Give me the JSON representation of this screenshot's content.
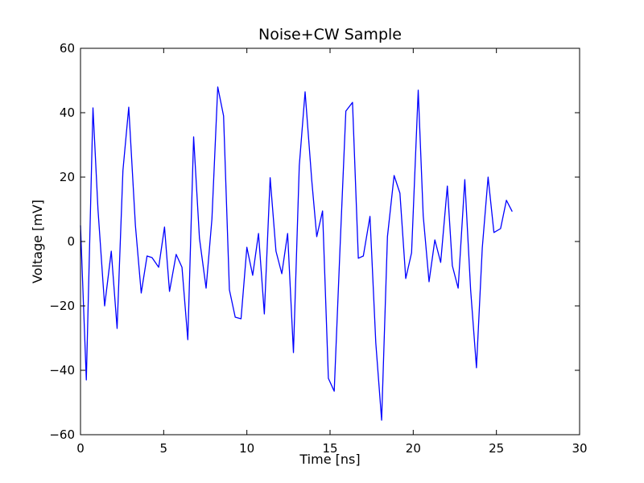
{
  "chart_data": {
    "type": "line",
    "title": "Noise+CW Sample",
    "xlabel": "Time [ns]",
    "ylabel": "Voltage [mV]",
    "xlim": [
      0,
      30
    ],
    "ylim": [
      -60,
      60
    ],
    "xticks": [
      0,
      5,
      10,
      15,
      20,
      25,
      30
    ],
    "yticks": [
      -60,
      -40,
      -20,
      0,
      20,
      40,
      60
    ],
    "xtick_labels": [
      "0",
      "5",
      "10",
      "15",
      "20",
      "25",
      "30"
    ],
    "ytick_labels": [
      "−60",
      "−40",
      "−20",
      "0",
      "20",
      "40",
      "60"
    ],
    "grid": false,
    "legend": "none",
    "colors": {
      "line": "#0000ff",
      "axes": "#000000",
      "background": "#ffffff"
    },
    "series": [
      {
        "x": [
          0,
          0.35,
          0.75,
          1.05,
          1.45,
          1.85,
          2.2,
          2.55,
          2.9,
          3.3,
          3.65,
          4.0,
          4.3,
          4.7,
          5.05,
          5.35,
          5.75,
          6.1,
          6.45,
          6.8,
          7.15,
          7.55,
          7.9,
          8.25,
          8.6,
          8.95,
          9.3,
          9.65,
          10.0,
          10.35,
          10.7,
          11.05,
          11.4,
          11.75,
          12.1,
          12.45,
          12.8,
          13.15,
          13.5,
          13.9,
          14.2,
          14.55,
          14.9,
          15.25,
          15.6,
          15.95,
          16.35,
          16.7,
          17.0,
          17.4,
          17.75,
          18.1,
          18.45,
          18.85,
          19.2,
          19.55,
          19.9,
          20.3,
          20.6,
          20.95,
          21.3,
          21.65,
          22.05,
          22.35,
          22.7,
          23.1,
          23.45,
          23.8,
          24.15,
          24.5,
          24.85,
          25.25,
          25.6,
          25.95
        ],
        "y": [
          5,
          -43,
          41.5,
          10,
          -20,
          -3,
          -27,
          22,
          41.7,
          5,
          -16,
          -4.5,
          -5,
          -8,
          4.5,
          -15.5,
          -4,
          -8,
          -30.5,
          32.5,
          1,
          -14.5,
          7,
          48,
          39,
          -15,
          -23.5,
          -24,
          -1.8,
          -10.5,
          2.5,
          -22.5,
          19.8,
          -3,
          -10,
          2.5,
          -34.5,
          23.5,
          46.5,
          19,
          1.5,
          9.5,
          -42.5,
          -46.5,
          -2,
          40.5,
          43.2,
          -5.2,
          -4.5,
          7.8,
          -31.5,
          -55.5,
          1.5,
          20.5,
          15,
          -11.5,
          -3.5,
          47,
          8,
          -12.5,
          0.5,
          -6.5,
          17.2,
          -7.5,
          -14.5,
          19.2,
          -15,
          -39.2,
          -2,
          20,
          2.8,
          4,
          12.8,
          9.3
        ]
      }
    ]
  }
}
